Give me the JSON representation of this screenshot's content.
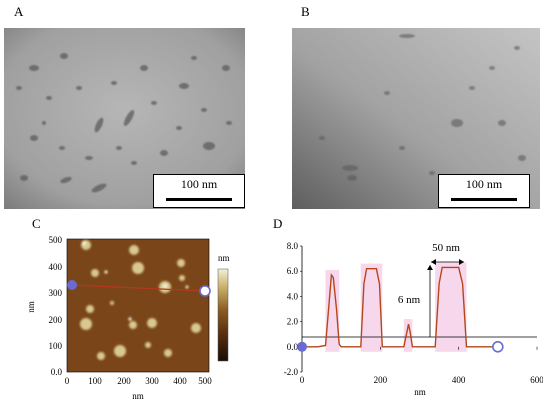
{
  "panels": {
    "A": {
      "letter": "A",
      "scale_label": "100 nm"
    },
    "B": {
      "letter": "B",
      "scale_label": "100 nm"
    },
    "C": {
      "letter": "C",
      "xlabel": "nm",
      "ylabel": "nm",
      "xticks": [
        "0",
        "100",
        "200",
        "300",
        "400",
        "500"
      ],
      "yticks": [
        "0.0",
        "100",
        "200",
        "300",
        "400",
        "500"
      ],
      "colorbar_label": "nm"
    },
    "D": {
      "letter": "D",
      "xlabel": "nm",
      "annotation_width": "50 nm",
      "annotation_height": "6 nm"
    }
  },
  "chart_data": {
    "type": "line",
    "xlabel": "nm",
    "ylabel": "",
    "xlim": [
      0,
      600
    ],
    "ylim": [
      -2.0,
      8.0
    ],
    "xticks": [
      "0",
      "200",
      "400",
      "600"
    ],
    "yticks": [
      "-2.0",
      "0.0",
      "2.0",
      "4.0",
      "6.0",
      "8.0"
    ],
    "series": [
      {
        "color": "#b5461c",
        "x": [
          0,
          40,
          60,
          68,
          75,
          80,
          88,
          95,
          100,
          150,
          158,
          165,
          190,
          198,
          205,
          260,
          268,
          272,
          276,
          282,
          340,
          350,
          358,
          385,
          400,
          410,
          420,
          500
        ],
        "y": [
          0.0,
          0.0,
          0.1,
          3.0,
          5.7,
          5.5,
          3.0,
          0.2,
          0.0,
          0.0,
          5.0,
          6.2,
          6.2,
          5.0,
          0.0,
          0.0,
          1.2,
          1.8,
          1.2,
          0.0,
          0.0,
          5.0,
          6.3,
          6.3,
          6.3,
          5.0,
          0.0,
          0.0
        ]
      }
    ],
    "markers": [
      {
        "x": 0,
        "y": 0,
        "style": "filled",
        "color": "#6a6ad0"
      },
      {
        "x": 500,
        "y": 0,
        "style": "hollow",
        "color": "#6a6ad0"
      }
    ],
    "grid": false,
    "legend": "none"
  }
}
